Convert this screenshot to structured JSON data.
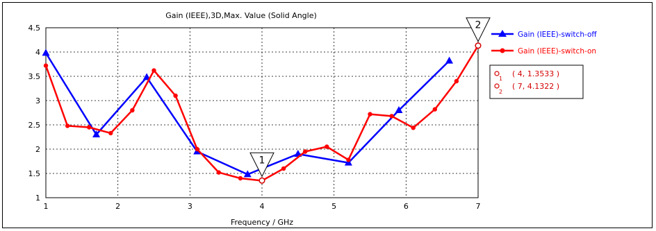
{
  "chart_data": {
    "type": "line",
    "title": "Gain (IEEE),3D,Max. Value (Solid Angle)",
    "xlabel": "Frequency / GHz",
    "ylabel": "",
    "xlim": [
      1,
      7
    ],
    "ylim": [
      1,
      4.5
    ],
    "x_ticks": [
      "1",
      "2",
      "3",
      "4",
      "5",
      "6",
      "7"
    ],
    "y_ticks": [
      "1",
      "1.5",
      "2",
      "2.5",
      "3",
      "3.5",
      "4",
      "4.5"
    ],
    "grid": true,
    "legend_position": "right",
    "series": [
      {
        "name": "Gain (IEEE)-switch-off",
        "color": "#0000ff",
        "marker": "triangle",
        "x": [
          1.0,
          1.7,
          2.4,
          3.1,
          3.8,
          4.5,
          5.2,
          5.9,
          6.6
        ],
        "y": [
          3.98,
          2.3,
          3.48,
          1.95,
          1.48,
          1.9,
          1.72,
          2.8,
          3.82
        ]
      },
      {
        "name": "Gain (IEEE)-switch-on",
        "color": "#ff0000",
        "marker": "circle",
        "x": [
          1.0,
          1.3,
          1.6,
          1.9,
          2.2,
          2.5,
          2.8,
          3.1,
          3.4,
          3.7,
          4.0,
          4.3,
          4.6,
          4.9,
          5.2,
          5.5,
          5.8,
          6.1,
          6.4,
          6.7,
          7.0
        ],
        "y": [
          3.72,
          2.48,
          2.45,
          2.33,
          2.8,
          3.62,
          3.1,
          2.0,
          1.52,
          1.4,
          1.35,
          1.6,
          1.95,
          2.05,
          1.78,
          2.72,
          2.68,
          2.44,
          2.82,
          3.4,
          4.13
        ]
      }
    ],
    "markers": [
      {
        "id": "1",
        "x": 4,
        "y": 1.3533,
        "label": "( 4, 1.3533 )"
      },
      {
        "id": "2",
        "x": 7,
        "y": 4.1322,
        "label": "( 7, 4.1322 )"
      }
    ]
  }
}
